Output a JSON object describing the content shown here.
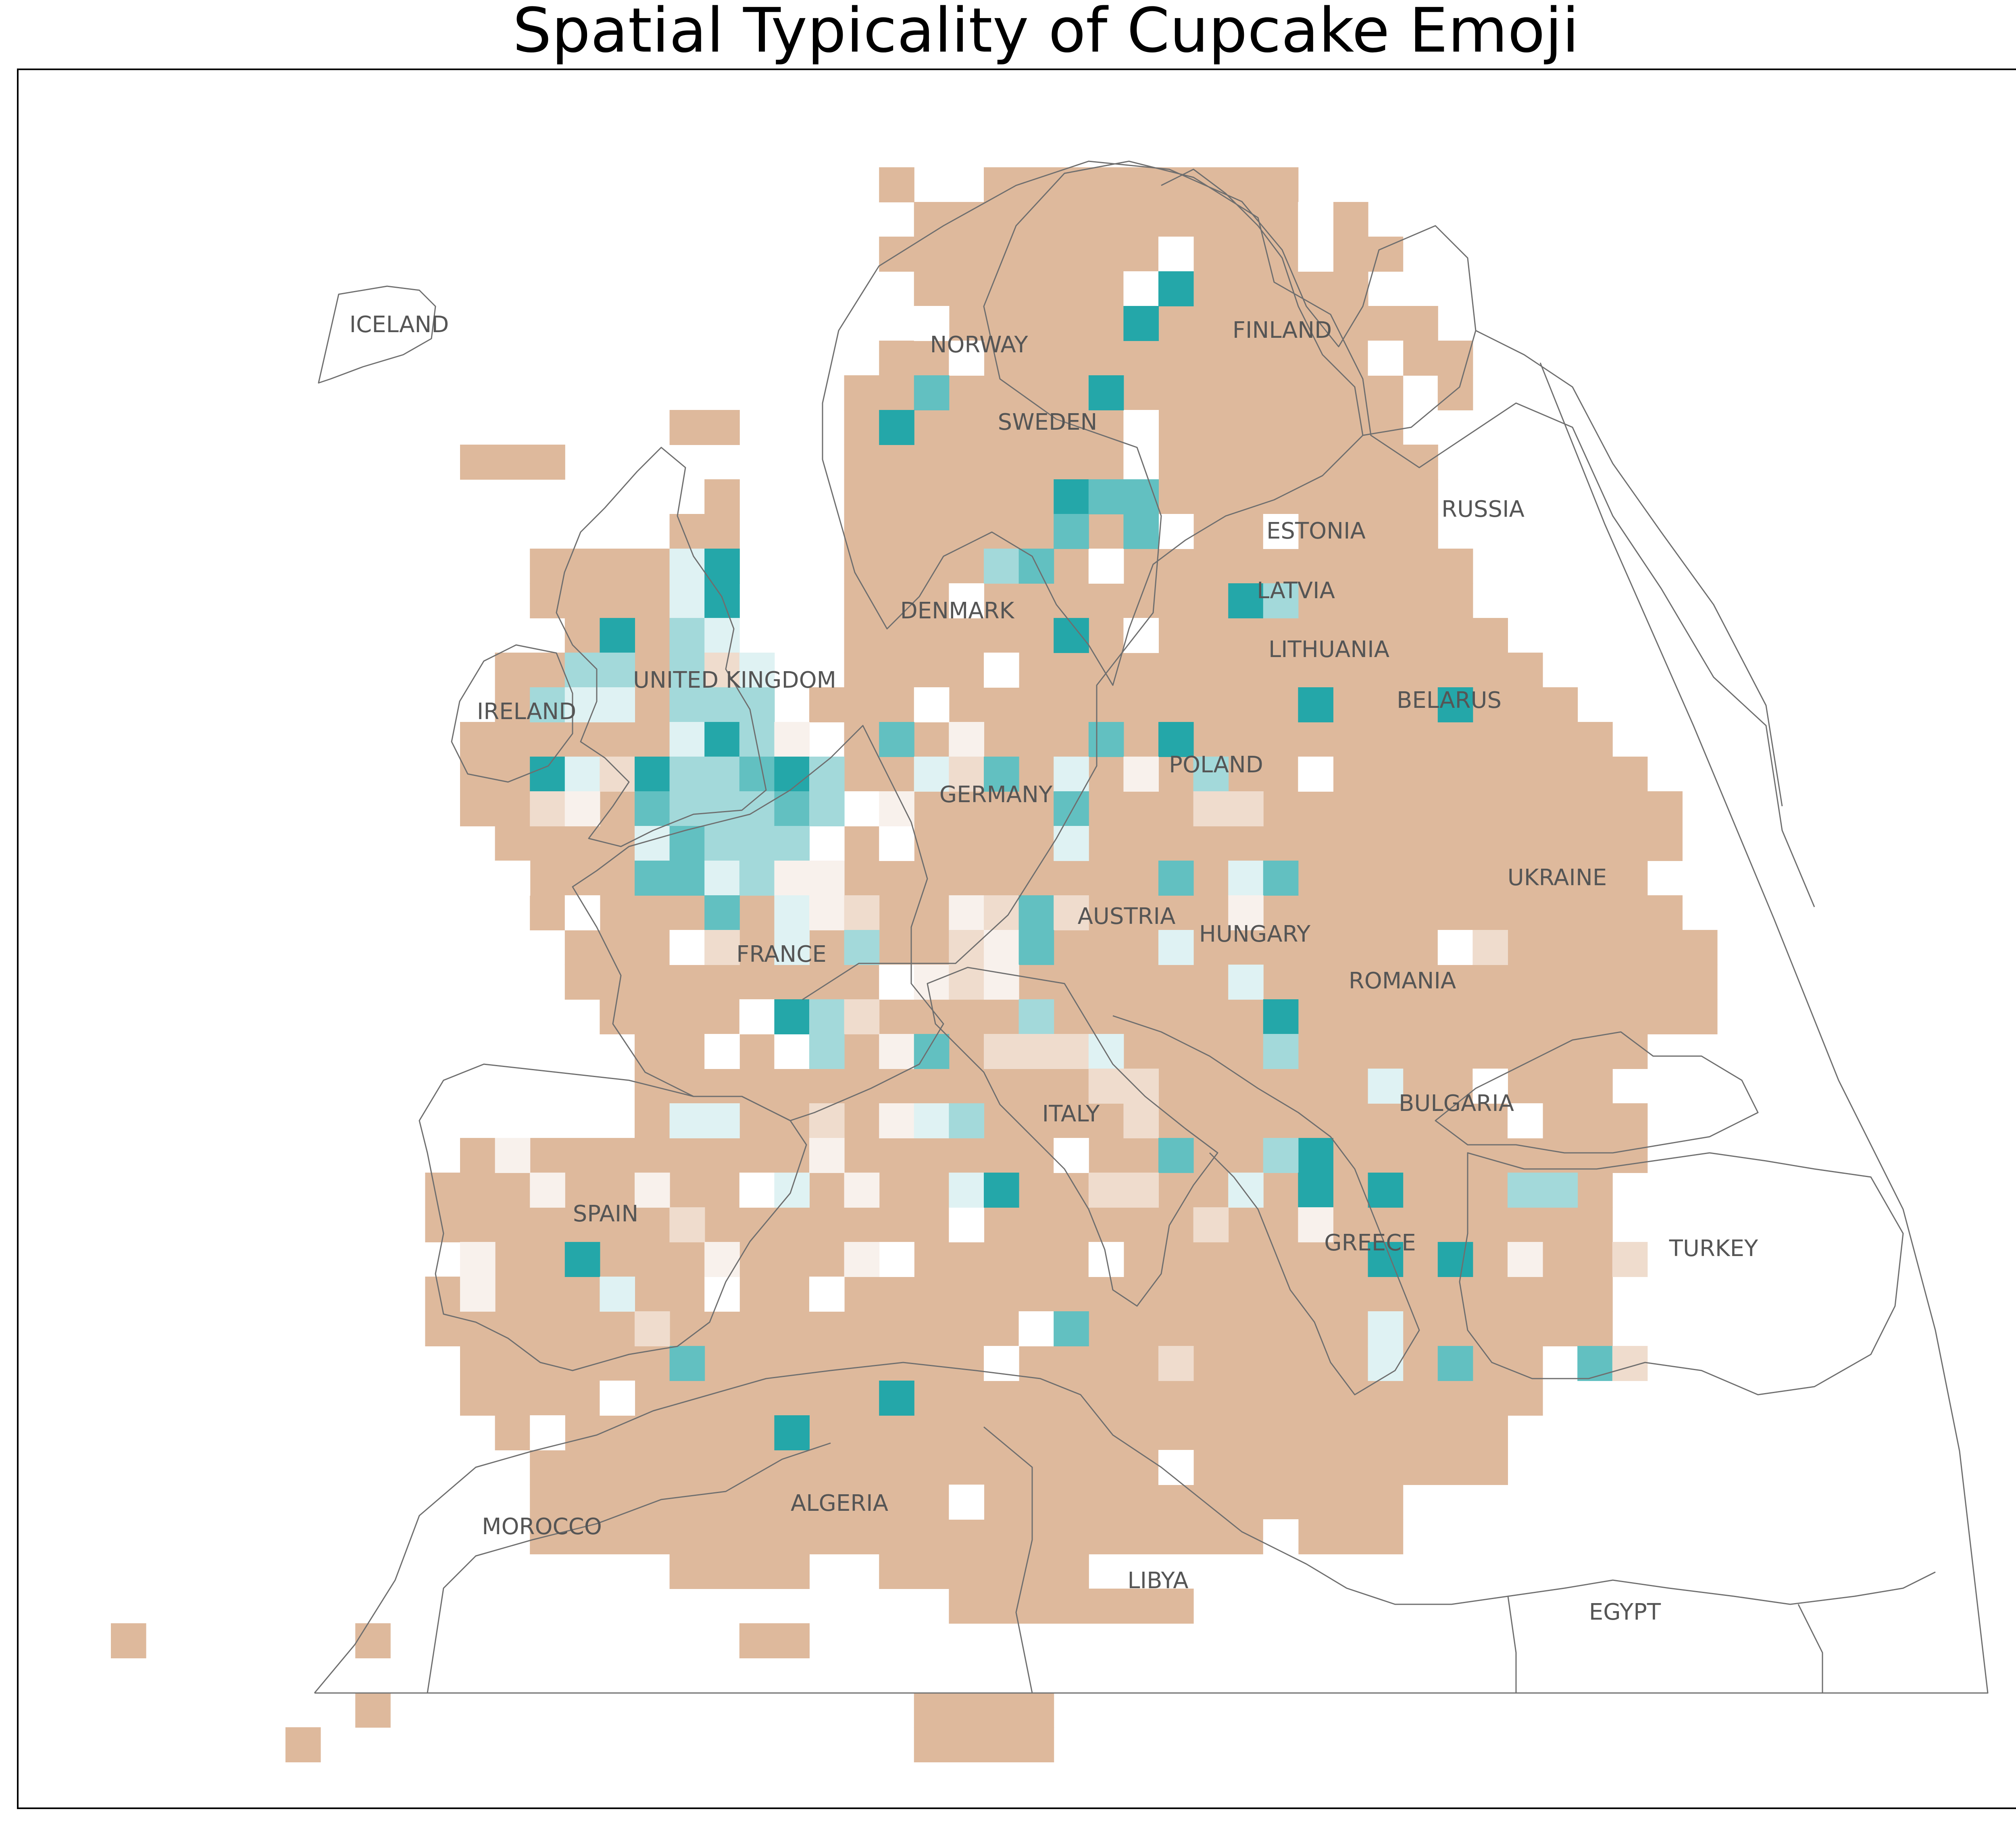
{
  "title": "Spatial Typicality of Cupcake Emoji",
  "colors": {
    "background": "#ffffff",
    "frame": "#000000",
    "border": "#6e6e6e",
    "label": "#555555",
    "base": "#deb99c",
    "light_peach": "#efdccd",
    "cream": "#f8f1ec",
    "pale_cyan": "#dff2f3",
    "light_teal": "#a3d9da",
    "mid_teal": "#62c0c1",
    "dark_teal": "#24a7a9"
  },
  "labels": [
    {
      "id": "iceland",
      "text": "ICELAND"
    },
    {
      "id": "norway",
      "text": "NORWAY"
    },
    {
      "id": "finland",
      "text": "FINLAND"
    },
    {
      "id": "sweden",
      "text": "SWEDEN"
    },
    {
      "id": "russia",
      "text": "RUSSIA"
    },
    {
      "id": "estonia",
      "text": "ESTONIA"
    },
    {
      "id": "latvia",
      "text": "LATVIA"
    },
    {
      "id": "denmark",
      "text": "DENMARK"
    },
    {
      "id": "lithuania",
      "text": "LITHUANIA"
    },
    {
      "id": "united-kingdom",
      "text": "UNITED KINGDOM"
    },
    {
      "id": "belarus",
      "text": "BELARUS"
    },
    {
      "id": "ireland",
      "text": "IRELAND"
    },
    {
      "id": "poland",
      "text": "POLAND"
    },
    {
      "id": "germany",
      "text": "GERMANY"
    },
    {
      "id": "ukraine",
      "text": "UKRAINE"
    },
    {
      "id": "austria",
      "text": "AUSTRIA"
    },
    {
      "id": "hungary",
      "text": "HUNGARY"
    },
    {
      "id": "france",
      "text": "FRANCE"
    },
    {
      "id": "romania",
      "text": "ROMANIA"
    },
    {
      "id": "bulgaria",
      "text": "BULGARIA"
    },
    {
      "id": "italy",
      "text": "ITALY"
    },
    {
      "id": "spain",
      "text": "SPAIN"
    },
    {
      "id": "greece",
      "text": "GREECE"
    },
    {
      "id": "turkey",
      "text": "TURKEY"
    },
    {
      "id": "morocco",
      "text": "MOROCCO"
    },
    {
      "id": "algeria",
      "text": "ALGERIA"
    },
    {
      "id": "libya",
      "text": "LIBYA"
    },
    {
      "id": "egypt",
      "text": "EGYPT"
    }
  ]
}
